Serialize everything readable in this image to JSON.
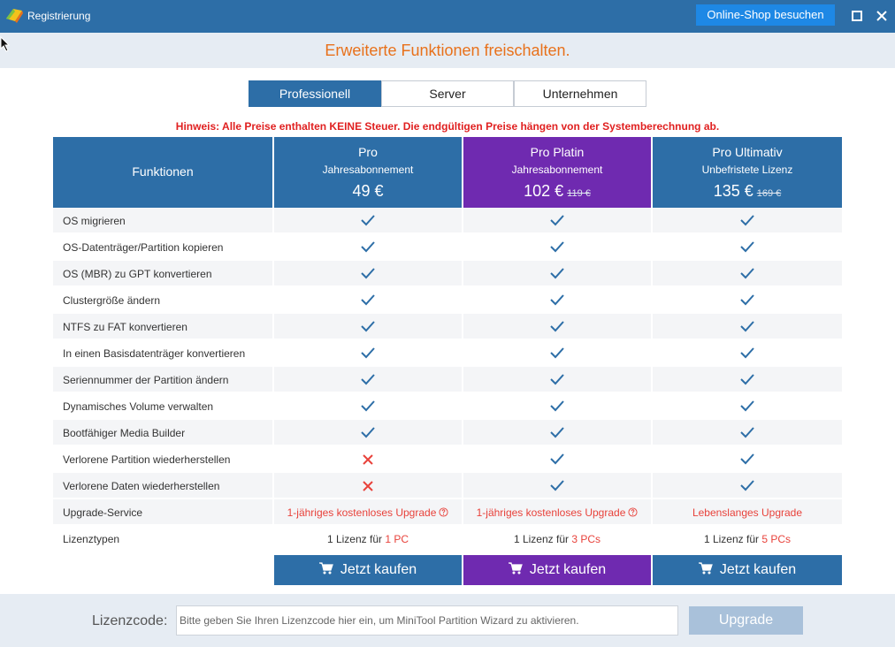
{
  "window": {
    "title": "Registrierung",
    "shop_button": "Online-Shop besuchen"
  },
  "banner": {
    "title": "Erweiterte Funktionen freischalten."
  },
  "tabs": [
    {
      "label": "Professionell",
      "active": true
    },
    {
      "label": "Server",
      "active": false
    },
    {
      "label": "Unternehmen",
      "active": false
    }
  ],
  "notice": "Hinweis: Alle Preise enthalten KEINE Steuer. Die endgültigen Preise hängen von der Systemberechnung ab.",
  "table": {
    "feature_header": "Funktionen",
    "plans": [
      {
        "name": "Pro",
        "term": "Jahresabonnement",
        "price": "49 €",
        "old_price": "",
        "color": "#2d6ea7"
      },
      {
        "name": "Pro Platin",
        "term": "Jahresabonnement",
        "price": "102 €",
        "old_price": "119 €",
        "color": "#6f2ab0"
      },
      {
        "name": "Pro Ultimativ",
        "term": "Unbefristete Lizenz",
        "price": "135 €",
        "old_price": "169 €",
        "color": "#2d6ea7"
      }
    ],
    "features": [
      {
        "label": "OS migrieren",
        "support": [
          true,
          true,
          true
        ]
      },
      {
        "label": "OS-Datenträger/Partition kopieren",
        "support": [
          true,
          true,
          true
        ]
      },
      {
        "label": "OS (MBR) zu GPT konvertieren",
        "support": [
          true,
          true,
          true
        ]
      },
      {
        "label": "Clustergröße ändern",
        "support": [
          true,
          true,
          true
        ]
      },
      {
        "label": "NTFS zu FAT konvertieren",
        "support": [
          true,
          true,
          true
        ]
      },
      {
        "label": "In einen Basisdatenträger konvertieren",
        "support": [
          true,
          true,
          true
        ]
      },
      {
        "label": "Seriennummer der Partition ändern",
        "support": [
          true,
          true,
          true
        ]
      },
      {
        "label": "Dynamisches Volume verwalten",
        "support": [
          true,
          true,
          true
        ]
      },
      {
        "label": "Bootfähiger Media Builder",
        "support": [
          true,
          true,
          true
        ]
      },
      {
        "label": "Verlorene Partition wiederherstellen",
        "support": [
          false,
          true,
          true
        ]
      },
      {
        "label": "Verlorene Daten wiederherstellen",
        "support": [
          false,
          true,
          true
        ]
      }
    ],
    "upgrade_row": {
      "label": "Upgrade-Service",
      "values": [
        "1-jähriges kostenloses Upgrade",
        "1-jähriges kostenloses Upgrade",
        "Lebenslanges Upgrade"
      ]
    },
    "license_row": {
      "label": "Lizenztypen",
      "prefix": "1 Lizenz für",
      "counts": [
        "1 PC",
        "3 PCs",
        "5 PCs"
      ]
    },
    "buy_label": "Jetzt kaufen"
  },
  "footer": {
    "license_label": "Lizenzcode:",
    "license_placeholder": "Bitte geben Sie Ihren Lizenzcode hier ein, um MiniTool Partition Wizard zu aktivieren.",
    "license_value": "",
    "upgrade_button": "Upgrade"
  },
  "colors": {
    "titlebar": "#2d6ea7",
    "accent_orange": "#e8711b",
    "platin_purple": "#6f2ab0",
    "check_blue": "#2d6ea7",
    "cross_red": "#e8423b",
    "notice_red": "#e02020"
  }
}
